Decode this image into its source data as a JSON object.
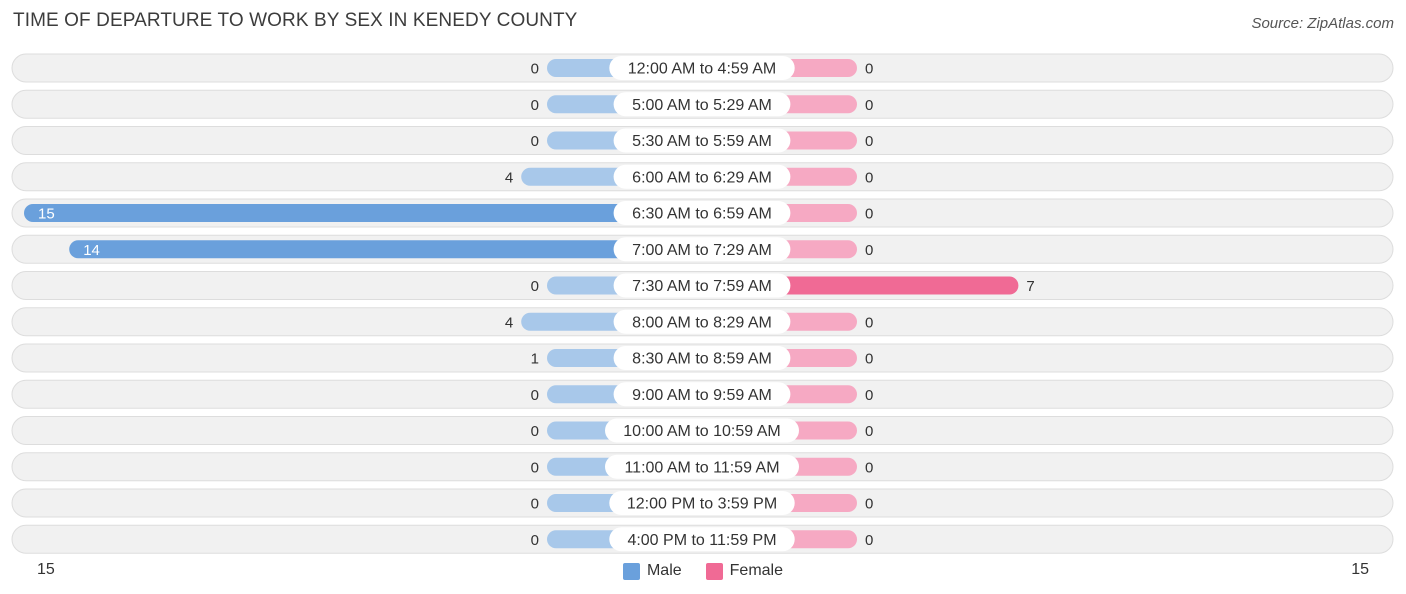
{
  "title": "TIME OF DEPARTURE TO WORK BY SEX IN KENEDY COUNTY",
  "source": "Source: ZipAtlas.com",
  "colors": {
    "male_light": "#a8c8ea",
    "male_strong": "#6aa0dc",
    "female_light": "#f6a9c3",
    "female_strong": "#f06a95",
    "row_bg": "#f1f1f1",
    "row_border": "#dddddd"
  },
  "legend": {
    "male": "Male",
    "female": "Female"
  },
  "axis": {
    "left_label": "15",
    "right_label": "15"
  },
  "chart_data": {
    "type": "bar",
    "orientation": "horizontal-diverging",
    "categories": [
      "12:00 AM to 4:59 AM",
      "5:00 AM to 5:29 AM",
      "5:30 AM to 5:59 AM",
      "6:00 AM to 6:29 AM",
      "6:30 AM to 6:59 AM",
      "7:00 AM to 7:29 AM",
      "7:30 AM to 7:59 AM",
      "8:00 AM to 8:29 AM",
      "8:30 AM to 8:59 AM",
      "9:00 AM to 9:59 AM",
      "10:00 AM to 10:59 AM",
      "11:00 AM to 11:59 AM",
      "12:00 PM to 3:59 PM",
      "4:00 PM to 11:59 PM"
    ],
    "series": [
      {
        "name": "Male",
        "values": [
          0,
          0,
          0,
          4,
          15,
          14,
          0,
          4,
          1,
          0,
          0,
          0,
          0,
          0
        ]
      },
      {
        "name": "Female",
        "values": [
          0,
          0,
          0,
          0,
          0,
          0,
          7,
          0,
          0,
          0,
          0,
          0,
          0,
          0
        ]
      }
    ],
    "xlim": [
      -15,
      15
    ],
    "legend_position": "bottom-center"
  }
}
